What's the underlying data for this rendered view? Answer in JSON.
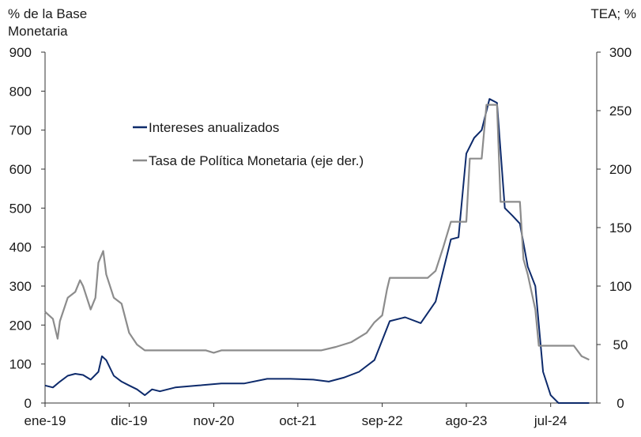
{
  "chart_data": {
    "type": "line",
    "title": "",
    "ylabel_left_lines": [
      "% de la Base",
      "Monetaria"
    ],
    "ylabel_right": "TEA; %",
    "x_tick_labels": [
      "ene-19",
      "dic-19",
      "nov-20",
      "oct-21",
      "sep-22",
      "ago-23",
      "jul-24"
    ],
    "y_left": {
      "min": 0,
      "max": 900,
      "ticks": [
        "0",
        "100",
        "200",
        "300",
        "400",
        "500",
        "600",
        "700",
        "800",
        "900"
      ]
    },
    "y_right": {
      "min": 0,
      "max": 300,
      "ticks": [
        "0",
        "50",
        "100",
        "150",
        "200",
        "250",
        "300"
      ]
    },
    "legend": {
      "placement": "top-center",
      "items": [
        {
          "name": "Intereses anualizados",
          "color": "#0d2a6b"
        },
        {
          "name": "Tasa de Política Monetaria (eje der.)",
          "color": "#8c8c8c"
        }
      ]
    },
    "x_range": [
      "2019-01",
      "2024-12"
    ],
    "series": [
      {
        "name": "Intereses anualizados",
        "axis": "left",
        "color": "#0d2a6b",
        "points": [
          [
            "2019-01",
            45
          ],
          [
            "2019-02",
            40
          ],
          [
            "2019-03",
            55
          ],
          [
            "2019-04",
            70
          ],
          [
            "2019-05",
            75
          ],
          [
            "2019-06",
            72
          ],
          [
            "2019-07",
            60
          ],
          [
            "2019-08",
            80
          ],
          [
            "2019-08-15",
            120
          ],
          [
            "2019-09",
            110
          ],
          [
            "2019-10",
            70
          ],
          [
            "2019-11",
            55
          ],
          [
            "2019-12",
            45
          ],
          [
            "2020-01",
            35
          ],
          [
            "2020-02",
            20
          ],
          [
            "2020-03",
            35
          ],
          [
            "2020-04",
            30
          ],
          [
            "2020-06",
            40
          ],
          [
            "2020-09",
            45
          ],
          [
            "2020-12",
            50
          ],
          [
            "2021-03",
            50
          ],
          [
            "2021-06",
            62
          ],
          [
            "2021-09",
            62
          ],
          [
            "2021-12",
            60
          ],
          [
            "2022-02",
            55
          ],
          [
            "2022-04",
            65
          ],
          [
            "2022-06",
            80
          ],
          [
            "2022-08",
            110
          ],
          [
            "2022-10",
            210
          ],
          [
            "2022-12",
            220
          ],
          [
            "2023-02",
            205
          ],
          [
            "2023-04",
            260
          ],
          [
            "2023-06",
            420
          ],
          [
            "2023-07",
            425
          ],
          [
            "2023-08",
            640
          ],
          [
            "2023-09",
            680
          ],
          [
            "2023-10",
            700
          ],
          [
            "2023-11",
            780
          ],
          [
            "2023-12",
            770
          ],
          [
            "2024-01",
            500
          ],
          [
            "2024-02",
            480
          ],
          [
            "2024-03",
            460
          ],
          [
            "2024-04",
            350
          ],
          [
            "2024-05",
            300
          ],
          [
            "2024-06",
            80
          ],
          [
            "2024-07",
            20
          ],
          [
            "2024-08",
            0
          ],
          [
            "2024-12",
            0
          ]
        ]
      },
      {
        "name": "Tasa de Política Monetaria (eje der.)",
        "axis": "right",
        "color": "#8c8c8c",
        "points": [
          [
            "2019-01",
            78
          ],
          [
            "2019-02",
            72
          ],
          [
            "2019-02-20",
            55
          ],
          [
            "2019-03",
            70
          ],
          [
            "2019-04",
            90
          ],
          [
            "2019-05",
            95
          ],
          [
            "2019-05-20",
            105
          ],
          [
            "2019-06",
            100
          ],
          [
            "2019-07",
            80
          ],
          [
            "2019-07-20",
            90
          ],
          [
            "2019-08",
            120
          ],
          [
            "2019-08-20",
            130
          ],
          [
            "2019-09",
            110
          ],
          [
            "2019-10",
            90
          ],
          [
            "2019-11",
            85
          ],
          [
            "2019-12",
            60
          ],
          [
            "2020-01",
            50
          ],
          [
            "2020-02",
            45
          ],
          [
            "2020-10",
            45
          ],
          [
            "2020-11",
            43
          ],
          [
            "2020-12",
            45
          ],
          [
            "2022-01",
            45
          ],
          [
            "2022-03",
            48
          ],
          [
            "2022-05",
            52
          ],
          [
            "2022-07",
            60
          ],
          [
            "2022-08",
            69
          ],
          [
            "2022-09",
            75
          ],
          [
            "2022-09-20",
            97
          ],
          [
            "2022-10",
            107
          ],
          [
            "2023-03",
            107
          ],
          [
            "2023-04",
            113
          ],
          [
            "2023-05",
            133
          ],
          [
            "2023-06",
            155
          ],
          [
            "2023-08",
            155
          ],
          [
            "2023-08-15",
            209
          ],
          [
            "2023-10",
            209
          ],
          [
            "2023-10-20",
            255
          ],
          [
            "2023-12",
            255
          ],
          [
            "2023-12-15",
            172
          ],
          [
            "2024-03",
            172
          ],
          [
            "2024-03-15",
            123
          ],
          [
            "2024-04",
            110
          ],
          [
            "2024-05",
            80
          ],
          [
            "2024-05-15",
            49
          ],
          [
            "2024-10",
            49
          ],
          [
            "2024-11",
            40
          ],
          [
            "2024-12",
            37
          ]
        ]
      }
    ]
  }
}
